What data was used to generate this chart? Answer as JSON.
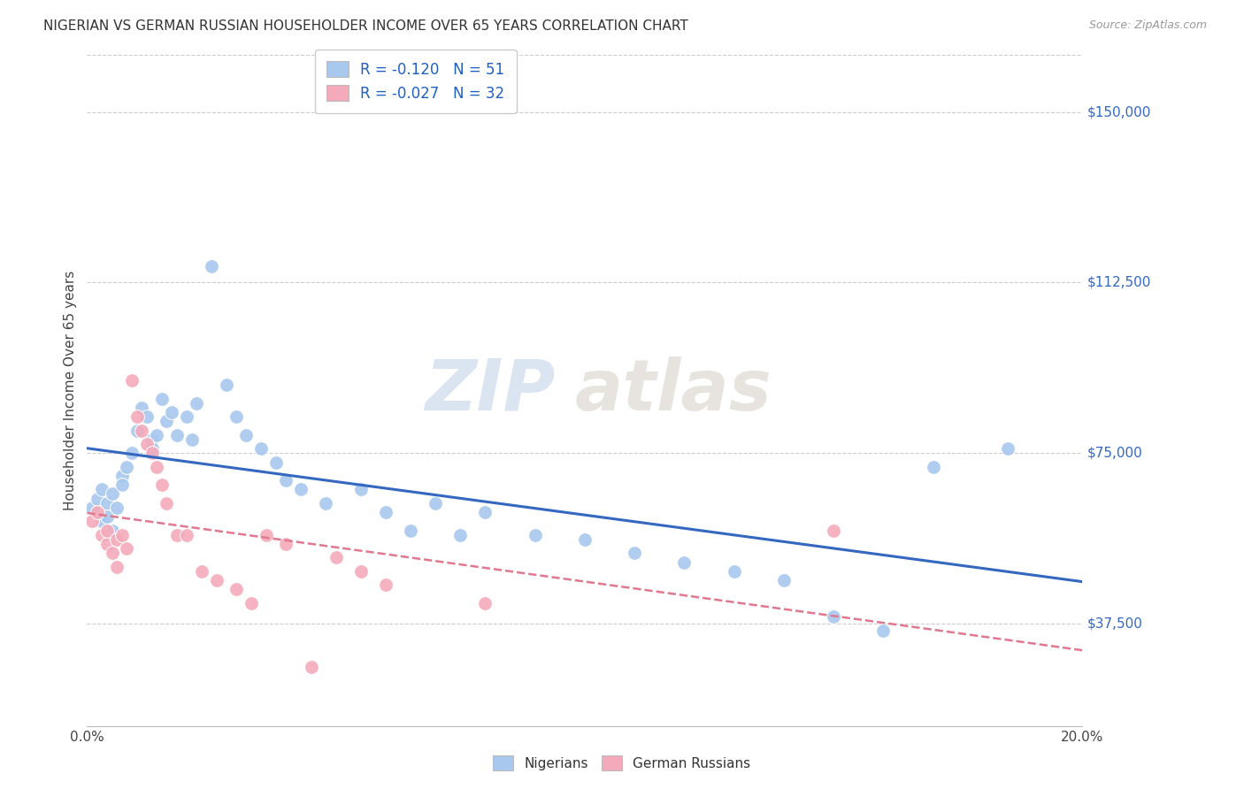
{
  "title": "NIGERIAN VS GERMAN RUSSIAN HOUSEHOLDER INCOME OVER 65 YEARS CORRELATION CHART",
  "source": "Source: ZipAtlas.com",
  "ylabel": "Householder Income Over 65 years",
  "xlim": [
    0.0,
    0.2
  ],
  "ylim": [
    15000,
    162500
  ],
  "yticks": [
    37500,
    75000,
    112500,
    150000
  ],
  "ytick_labels": [
    "$37,500",
    "$75,000",
    "$112,500",
    "$150,000"
  ],
  "xticks": [
    0.0,
    0.05,
    0.1,
    0.15,
    0.2
  ],
  "xtick_labels": [
    "0.0%",
    "",
    "",
    "",
    "20.0%"
  ],
  "nigerian_color": "#A8C8EE",
  "german_russian_color": "#F4AABB",
  "nigerian_line_color": "#3468C0",
  "german_russian_line_color": "#E07890",
  "background_color": "#FFFFFF",
  "grid_color": "#CCCCCC",
  "legend_R_color": "#2060C0",
  "watermark_zip": "ZIP",
  "watermark_atlas": "atlas",
  "nigerian_R": -0.12,
  "nigerian_N": 51,
  "german_russian_R": -0.027,
  "german_russian_N": 32,
  "nig_x": [
    0.001,
    0.002,
    0.003,
    0.003,
    0.004,
    0.004,
    0.005,
    0.005,
    0.006,
    0.007,
    0.007,
    0.008,
    0.009,
    0.01,
    0.011,
    0.012,
    0.013,
    0.013,
    0.014,
    0.015,
    0.016,
    0.017,
    0.018,
    0.02,
    0.021,
    0.022,
    0.025,
    0.028,
    0.03,
    0.032,
    0.035,
    0.038,
    0.04,
    0.043,
    0.048,
    0.055,
    0.06,
    0.065,
    0.07,
    0.075,
    0.08,
    0.09,
    0.1,
    0.11,
    0.12,
    0.13,
    0.14,
    0.15,
    0.16,
    0.17,
    0.185
  ],
  "nig_y": [
    63000,
    65000,
    67000,
    60000,
    64000,
    61000,
    66000,
    58000,
    63000,
    70000,
    68000,
    72000,
    75000,
    80000,
    85000,
    83000,
    78000,
    76000,
    79000,
    87000,
    82000,
    84000,
    79000,
    83000,
    78000,
    86000,
    116000,
    90000,
    83000,
    79000,
    76000,
    73000,
    69000,
    67000,
    64000,
    67000,
    62000,
    58000,
    64000,
    57000,
    62000,
    57000,
    56000,
    53000,
    51000,
    49000,
    47000,
    39000,
    36000,
    72000,
    76000
  ],
  "ger_x": [
    0.001,
    0.002,
    0.003,
    0.004,
    0.004,
    0.005,
    0.006,
    0.006,
    0.007,
    0.008,
    0.009,
    0.01,
    0.011,
    0.012,
    0.013,
    0.014,
    0.015,
    0.016,
    0.018,
    0.02,
    0.023,
    0.026,
    0.03,
    0.033,
    0.036,
    0.04,
    0.045,
    0.05,
    0.055,
    0.06,
    0.08,
    0.15
  ],
  "ger_y": [
    60000,
    62000,
    57000,
    55000,
    58000,
    53000,
    56000,
    50000,
    57000,
    54000,
    91000,
    83000,
    80000,
    77000,
    75000,
    72000,
    68000,
    64000,
    57000,
    57000,
    49000,
    47000,
    45000,
    42000,
    57000,
    55000,
    28000,
    52000,
    49000,
    46000,
    42000,
    58000
  ]
}
